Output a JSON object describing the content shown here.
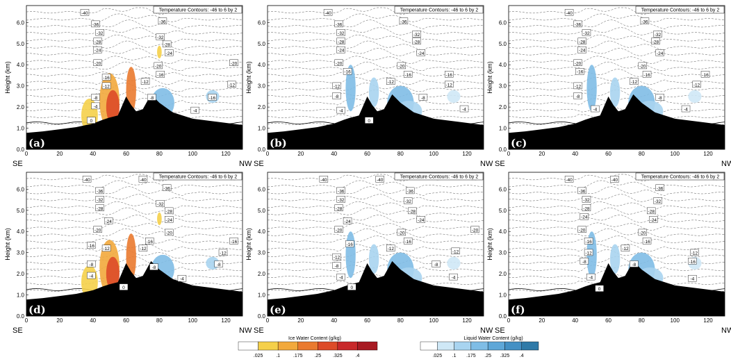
{
  "chart_data": {
    "type": "contour-cross-section",
    "panels": [
      {
        "label": "(a)",
        "field": "ice",
        "title": "Temperature Contours: -46 to 6 by 2",
        "contour_labels": [
          "-40",
          "-36",
          "-32",
          "-28",
          "-24",
          "-20",
          "-16",
          "-12",
          "-8",
          "-4",
          "0",
          "-36",
          "-32",
          "-28",
          "-24",
          "-20",
          "-16",
          "-12",
          "-8",
          "-4",
          "-20",
          "-12",
          "-16"
        ]
      },
      {
        "label": "(b)",
        "field": "liquid",
        "title": "Temperature Contours: -46 to 6 by 2",
        "contour_labels": [
          "-40",
          "-36",
          "-32",
          "-28",
          "-24",
          "-20",
          "-16",
          "-12",
          "-8",
          "-4",
          "0",
          "-36",
          "-32",
          "-28",
          "-24",
          "-20",
          "-16",
          "-12",
          "-8",
          "-4",
          "-16",
          "-12"
        ]
      },
      {
        "label": "(c)",
        "field": "liquid",
        "title": "Temperature Contours: -46 to 6 by 2",
        "contour_labels": [
          "-40",
          "-36",
          "-32",
          "-28",
          "-24",
          "-20",
          "-16",
          "-12",
          "-8",
          "-4",
          "-36",
          "-32",
          "-28",
          "-24",
          "-20",
          "-16",
          "-12",
          "-8",
          "-4",
          "-16",
          "-12"
        ]
      },
      {
        "label": "(d)",
        "field": "ice",
        "title": "Temperature Contours: -46 to 6 by 2",
        "contour_labels": [
          "-40",
          "-36",
          "-32",
          "-28",
          "-24",
          "-20",
          "-16",
          "-12",
          "-8",
          "-4",
          "0",
          "-40",
          "-36",
          "-32",
          "-28",
          "-24",
          "-20",
          "-16",
          "-12",
          "-8",
          "-4",
          "-16",
          "-12",
          "-8"
        ]
      },
      {
        "label": "(e)",
        "field": "liquid",
        "title": "Temperature Contours: -46 to 6 by 2",
        "contour_labels": [
          "-40",
          "-36",
          "-32",
          "-28",
          "-24",
          "-20",
          "-16",
          "-12",
          "-8",
          "-4",
          "0",
          "-40",
          "-36",
          "-32",
          "-28",
          "-24",
          "-20",
          "-16",
          "-12",
          "-8",
          "-4",
          "-20",
          "-12"
        ]
      },
      {
        "label": "(f)",
        "field": "liquid",
        "title": "Temperature Contours: -46 to 6 by 2",
        "contour_labels": [
          "-40",
          "-36",
          "-32",
          "-28",
          "-24",
          "-20",
          "-16",
          "-12",
          "-8",
          "-4",
          "0",
          "-40",
          "-36",
          "-32",
          "-28",
          "-24",
          "-20",
          "-16",
          "-12",
          "-8",
          "-4",
          "-16",
          "-12"
        ]
      }
    ],
    "x_ticks": [
      "0",
      "20",
      "40",
      "60",
      "80",
      "100",
      "120"
    ],
    "x_range": [
      0,
      130
    ],
    "y_ticks": [
      "0.0",
      "1.0",
      "2.0",
      "3.0",
      "4.0",
      "5.0",
      "6.0"
    ],
    "y_range": [
      0,
      6.8
    ],
    "ylabel": "Height (km)",
    "x_left_label": "SE",
    "x_right_label": "NW",
    "terrain_height_km": [
      [
        0,
        0.78
      ],
      [
        10,
        0.85
      ],
      [
        20,
        0.95
      ],
      [
        30,
        1.05
      ],
      [
        40,
        1.22
      ],
      [
        46,
        1.4
      ],
      [
        50,
        1.5
      ],
      [
        55,
        1.6
      ],
      [
        60,
        2.5
      ],
      [
        63,
        2.1
      ],
      [
        66,
        1.8
      ],
      [
        70,
        1.9
      ],
      [
        75,
        2.6
      ],
      [
        80,
        2.2
      ],
      [
        88,
        1.75
      ],
      [
        100,
        1.45
      ],
      [
        115,
        1.3
      ],
      [
        130,
        1.15
      ]
    ],
    "colorbars": [
      {
        "title": "Ice Water Content (g/kg)",
        "ticks": [
          ".025",
          ".1",
          ".175",
          ".25",
          ".325",
          ".4"
        ],
        "colors": [
          "#ffffff",
          "#f5d04a",
          "#f2a93c",
          "#ea7a2f",
          "#dd4b28",
          "#c8282a",
          "#a81a22"
        ]
      },
      {
        "title": "Liquid Water Content (g/kg)",
        "ticks": [
          ".025",
          ".1",
          ".175",
          ".25",
          ".325",
          ".4"
        ],
        "colors": [
          "#ffffff",
          "#cfe8f6",
          "#a8d4f0",
          "#7fbde6",
          "#5ea7d8",
          "#4490c4",
          "#2f7aa8"
        ]
      }
    ]
  }
}
